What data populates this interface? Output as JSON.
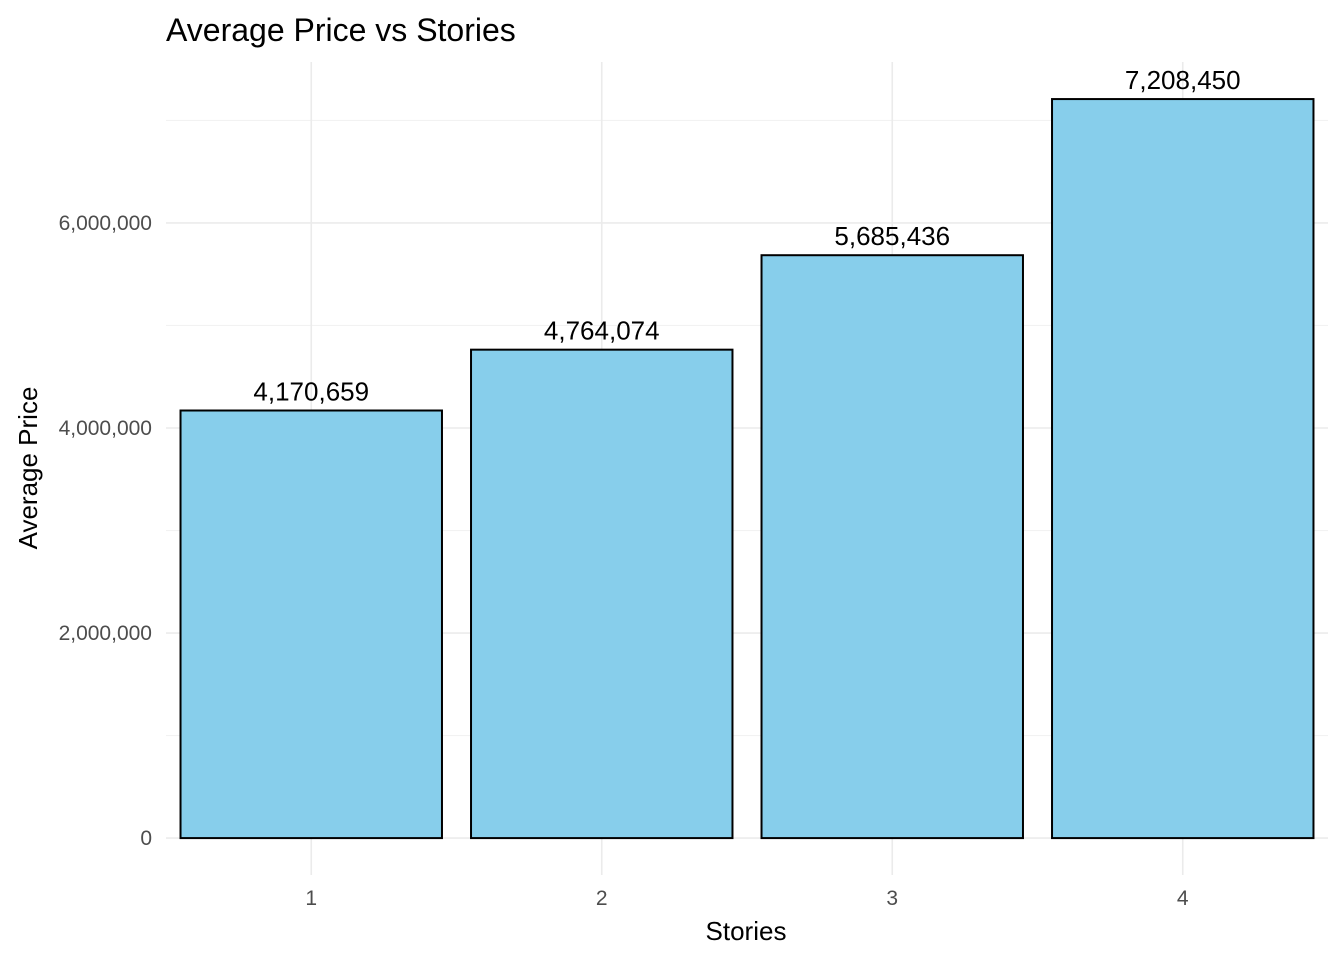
{
  "chart_data": {
    "type": "bar",
    "title": "Average Price vs Stories",
    "xlabel": "Stories",
    "ylabel": "Average Price",
    "categories": [
      "1",
      "2",
      "3",
      "4"
    ],
    "values": [
      4170659,
      4764074,
      5685436,
      7208450
    ],
    "value_labels": [
      "4,170,659",
      "4,764,074",
      "5,685,436",
      "7,208,450"
    ],
    "yticks": [
      0,
      2000000,
      4000000,
      6000000
    ],
    "ytick_labels": [
      "0",
      "2,000,000",
      "4,000,000",
      "6,000,000"
    ],
    "ylim": [
      -360000,
      7570000
    ],
    "grid": true,
    "colors": {
      "bar_fill": "#87CEEB",
      "bar_stroke": "#000000",
      "grid_major": "#ebebeb",
      "grid_minor": "#f2f2f2"
    }
  }
}
